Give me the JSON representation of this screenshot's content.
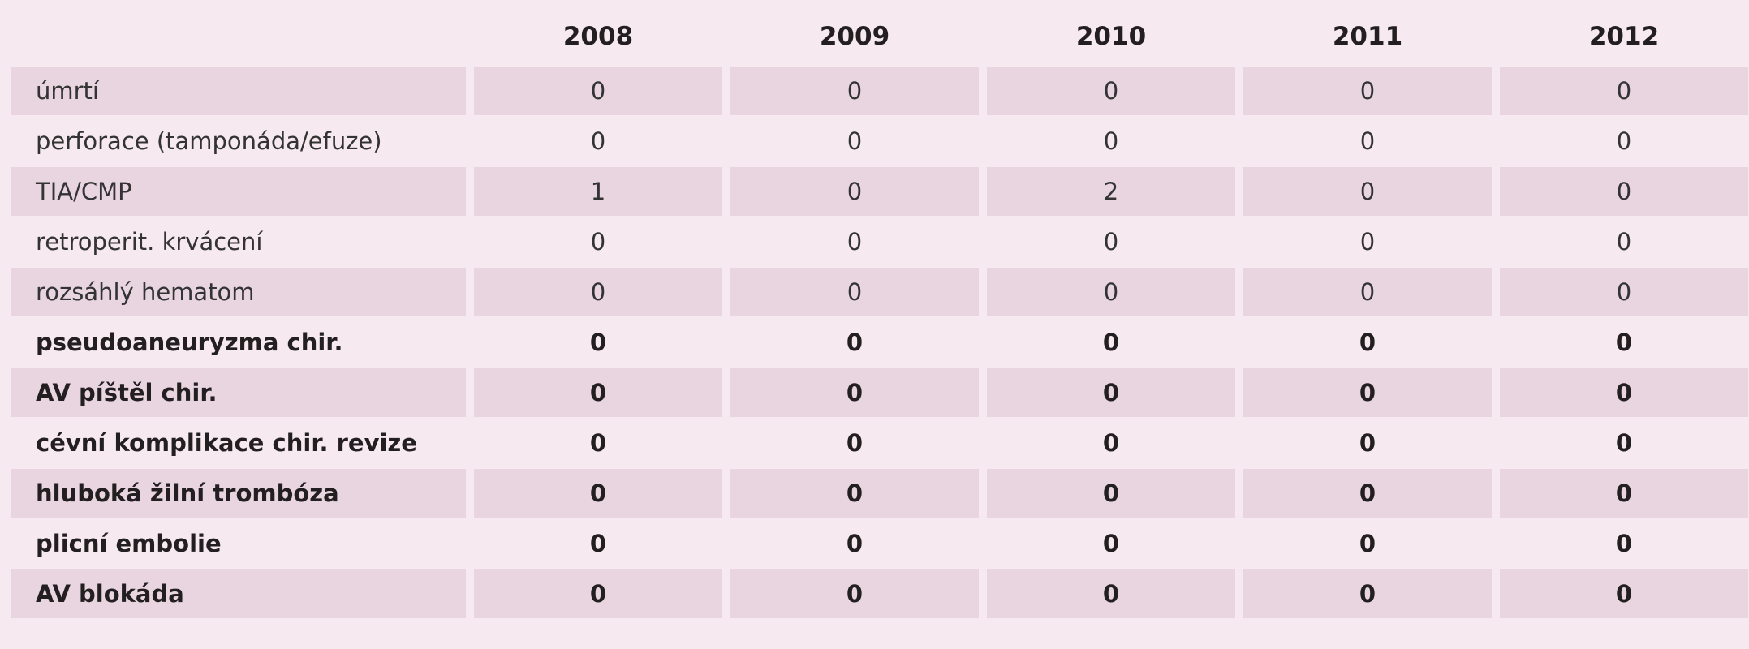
{
  "table": {
    "columns": [
      "2008",
      "2009",
      "2010",
      "2011",
      "2012"
    ],
    "rows": [
      {
        "label": "úmrtí",
        "values": [
          0,
          0,
          0,
          0,
          0
        ]
      },
      {
        "label": "perforace (tamponáda/efuze)",
        "values": [
          0,
          0,
          0,
          0,
          0
        ]
      },
      {
        "label": "TIA/CMP",
        "values": [
          1,
          0,
          2,
          0,
          0
        ]
      },
      {
        "label": "retroperit. krvácení",
        "values": [
          0,
          0,
          0,
          0,
          0
        ]
      },
      {
        "label": "rozsáhlý hematom",
        "values": [
          0,
          0,
          0,
          0,
          0
        ]
      },
      {
        "label": "pseudoaneuryzma chir.",
        "values": [
          0,
          0,
          0,
          0,
          0
        ]
      },
      {
        "label": "AV píštěl chir.",
        "values": [
          0,
          0,
          0,
          0,
          0
        ]
      },
      {
        "label": "cévní komplikace chir. revize",
        "values": [
          0,
          0,
          0,
          0,
          0
        ]
      },
      {
        "label": "hluboká žilní trombóza",
        "values": [
          0,
          0,
          0,
          0,
          0
        ]
      },
      {
        "label": "plicní embolie",
        "values": [
          0,
          0,
          0,
          0,
          0
        ]
      },
      {
        "label": "AV blokáda",
        "values": [
          0,
          0,
          0,
          0,
          0
        ]
      }
    ]
  }
}
